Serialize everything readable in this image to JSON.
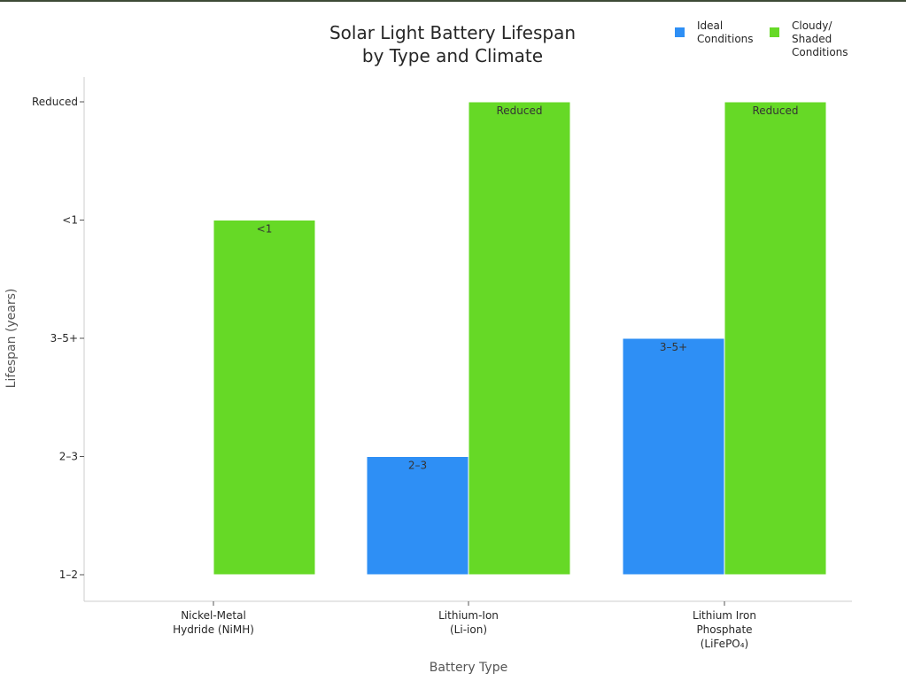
{
  "chart_data": {
    "type": "bar",
    "title": [
      "Solar Light Battery Lifespan",
      "by Type and Climate"
    ],
    "xlabel": "Battery Type",
    "ylabel": "Lifespan (years)",
    "categories": [
      [
        "Nickel-Metal",
        "Hydride (NiMH)"
      ],
      [
        "Lithium-Ion",
        "(Li-ion)"
      ],
      [
        "Lithium Iron",
        "Phosphate",
        "(LiFePO₄)"
      ]
    ],
    "y_ticks": [
      "1–2",
      "2–3",
      "3–5+",
      "<1",
      "Reduced"
    ],
    "series": [
      {
        "name": [
          "Ideal",
          "Conditions"
        ],
        "color": "#2e8ff5",
        "values": [
          null,
          1,
          2
        ],
        "labels": [
          "",
          "2–3",
          "3–5+"
        ]
      },
      {
        "name": [
          "Cloudy/",
          "Shaded",
          "Conditions"
        ],
        "color": "#66d926",
        "values": [
          3,
          4,
          4
        ],
        "labels": [
          "<1",
          "Reduced",
          "Reduced"
        ]
      }
    ],
    "ylim": [
      0,
      4
    ],
    "grid": false,
    "legend_position": "top-right"
  }
}
